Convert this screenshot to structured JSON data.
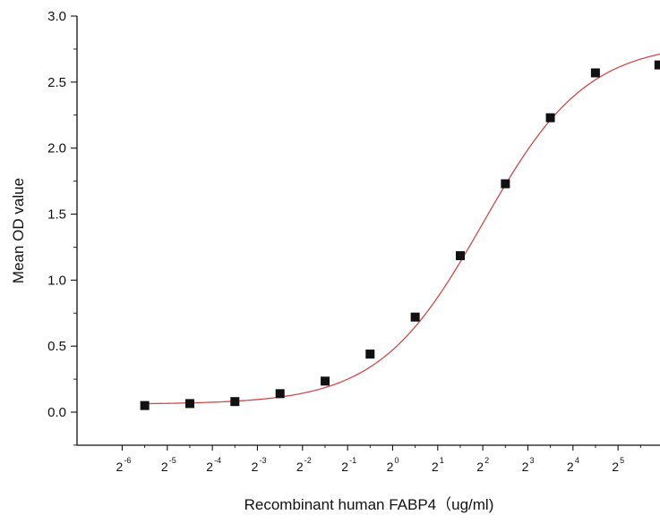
{
  "chart_data": {
    "type": "scatter",
    "title": "",
    "xlabel": "Recombinant human  FABP4（ug/ml)",
    "ylabel": "Mean OD value",
    "x_scale": "log2",
    "x_ticks": [
      {
        "base": "2",
        "exp": "-6",
        "value": 0.015625
      },
      {
        "base": "2",
        "exp": "-5",
        "value": 0.03125
      },
      {
        "base": "2",
        "exp": "-4",
        "value": 0.0625
      },
      {
        "base": "2",
        "exp": "-3",
        "value": 0.125
      },
      {
        "base": "2",
        "exp": "-2",
        "value": 0.25
      },
      {
        "base": "2",
        "exp": "-1",
        "value": 0.5
      },
      {
        "base": "2",
        "exp": "0",
        "value": 1
      },
      {
        "base": "2",
        "exp": "1",
        "value": 2
      },
      {
        "base": "2",
        "exp": "2",
        "value": 4
      },
      {
        "base": "2",
        "exp": "3",
        "value": 8
      },
      {
        "base": "2",
        "exp": "4",
        "value": 16
      },
      {
        "base": "2",
        "exp": "5",
        "value": 32
      }
    ],
    "y_ticks": [
      "0.0",
      "0.5",
      "1.0",
      "1.5",
      "2.0",
      "2.5",
      "3.0"
    ],
    "xlim": [
      0.0078,
      61.0
    ],
    "ylim": [
      -0.25,
      3.0
    ],
    "grid": false,
    "series": [
      {
        "marker": "square",
        "color": "#111111",
        "points": [
          {
            "x": 0.0221,
            "y": 0.05
          },
          {
            "x": 0.0442,
            "y": 0.065
          },
          {
            "x": 0.0884,
            "y": 0.08
          },
          {
            "x": 0.177,
            "y": 0.14
          },
          {
            "x": 0.354,
            "y": 0.235
          },
          {
            "x": 0.707,
            "y": 0.44
          },
          {
            "x": 1.414,
            "y": 0.72
          },
          {
            "x": 2.83,
            "y": 1.185
          },
          {
            "x": 5.66,
            "y": 1.73
          },
          {
            "x": 11.3,
            "y": 2.23
          },
          {
            "x": 22.6,
            "y": 2.57
          },
          {
            "x": 60.0,
            "y": 2.63
          }
        ]
      }
    ],
    "fit_curve": {
      "type": "four-parameter-logistic",
      "color": "#d04a4a",
      "bottom": 0.06,
      "top": 2.8,
      "ec50": 4.0,
      "hill": 1.25
    }
  }
}
